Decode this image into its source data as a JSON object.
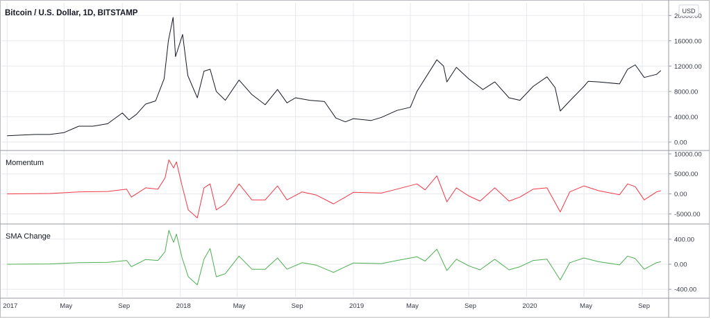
{
  "header": {
    "title": "Bitcoin / U.S. Dollar, 1D, BITSTAMP",
    "currency_badge": "USD"
  },
  "colors": {
    "price": "#131722",
    "momentum": "#f23645",
    "sma_change": "#4caf50",
    "grid": "#e6e8ec",
    "separator": "#9598a1"
  },
  "chart_data": [
    {
      "type": "line",
      "title": "Bitcoin / U.S. Dollar, 1D, BITSTAMP",
      "series": [
        {
          "values": [
            {
              "date": "2017-01-01",
              "value": 1000
            },
            {
              "date": "2017-02-01",
              "value": 1100
            },
            {
              "date": "2017-03-01",
              "value": 1200
            },
            {
              "date": "2017-04-01",
              "value": 1200
            },
            {
              "date": "2017-05-01",
              "value": 1500
            },
            {
              "date": "2017-06-01",
              "value": 2500
            },
            {
              "date": "2017-07-01",
              "value": 2500
            },
            {
              "date": "2017-08-01",
              "value": 2900
            },
            {
              "date": "2017-09-01",
              "value": 4600
            },
            {
              "date": "2017-09-15",
              "value": 3500
            },
            {
              "date": "2017-10-01",
              "value": 4400
            },
            {
              "date": "2017-10-20",
              "value": 6000
            },
            {
              "date": "2017-11-10",
              "value": 6500
            },
            {
              "date": "2017-11-28",
              "value": 10000
            },
            {
              "date": "2017-12-07",
              "value": 16000
            },
            {
              "date": "2017-12-17",
              "value": 19700
            },
            {
              "date": "2017-12-22",
              "value": 13500
            },
            {
              "date": "2018-01-06",
              "value": 17000
            },
            {
              "date": "2018-01-17",
              "value": 10500
            },
            {
              "date": "2018-02-06",
              "value": 7000
            },
            {
              "date": "2018-02-20",
              "value": 11200
            },
            {
              "date": "2018-03-05",
              "value": 11500
            },
            {
              "date": "2018-03-18",
              "value": 8000
            },
            {
              "date": "2018-04-06",
              "value": 6600
            },
            {
              "date": "2018-05-05",
              "value": 9800
            },
            {
              "date": "2018-06-01",
              "value": 7500
            },
            {
              "date": "2018-06-29",
              "value": 5900
            },
            {
              "date": "2018-07-25",
              "value": 8300
            },
            {
              "date": "2018-08-14",
              "value": 6200
            },
            {
              "date": "2018-09-01",
              "value": 7000
            },
            {
              "date": "2018-10-01",
              "value": 6600
            },
            {
              "date": "2018-11-01",
              "value": 6400
            },
            {
              "date": "2018-11-25",
              "value": 3800
            },
            {
              "date": "2018-12-15",
              "value": 3200
            },
            {
              "date": "2019-01-01",
              "value": 3700
            },
            {
              "date": "2019-02-07",
              "value": 3400
            },
            {
              "date": "2019-03-01",
              "value": 3900
            },
            {
              "date": "2019-04-03",
              "value": 5000
            },
            {
              "date": "2019-05-01",
              "value": 5500
            },
            {
              "date": "2019-05-15",
              "value": 8000
            },
            {
              "date": "2019-06-26",
              "value": 13000
            },
            {
              "date": "2019-07-10",
              "value": 12000
            },
            {
              "date": "2019-07-17",
              "value": 9500
            },
            {
              "date": "2019-08-06",
              "value": 11800
            },
            {
              "date": "2019-09-01",
              "value": 10000
            },
            {
              "date": "2019-10-01",
              "value": 8300
            },
            {
              "date": "2019-10-26",
              "value": 9500
            },
            {
              "date": "2019-11-25",
              "value": 7000
            },
            {
              "date": "2019-12-18",
              "value": 6600
            },
            {
              "date": "2020-01-15",
              "value": 8800
            },
            {
              "date": "2020-02-13",
              "value": 10300
            },
            {
              "date": "2020-03-01",
              "value": 8600
            },
            {
              "date": "2020-03-12",
              "value": 4900
            },
            {
              "date": "2020-04-01",
              "value": 6500
            },
            {
              "date": "2020-05-01",
              "value": 8800
            },
            {
              "date": "2020-05-10",
              "value": 9600
            },
            {
              "date": "2020-06-01",
              "value": 9500
            },
            {
              "date": "2020-07-15",
              "value": 9200
            },
            {
              "date": "2020-08-01",
              "value": 11500
            },
            {
              "date": "2020-08-17",
              "value": 12200
            },
            {
              "date": "2020-09-05",
              "value": 10200
            },
            {
              "date": "2020-10-01",
              "value": 10700
            },
            {
              "date": "2020-10-10",
              "value": 11300
            }
          ]
        }
      ],
      "y_ticks": [
        "0.00",
        "4000.00",
        "8000.00",
        "12000.00",
        "16000.00",
        "20000.00"
      ],
      "ylim": [
        -1000,
        22000
      ]
    },
    {
      "type": "line",
      "title": "Momentum",
      "series": [
        {
          "values": [
            {
              "date": "2017-01-01",
              "value": 0
            },
            {
              "date": "2017-04-01",
              "value": 100
            },
            {
              "date": "2017-06-01",
              "value": 500
            },
            {
              "date": "2017-08-01",
              "value": 600
            },
            {
              "date": "2017-09-10",
              "value": 1200
            },
            {
              "date": "2017-09-20",
              "value": -800
            },
            {
              "date": "2017-10-20",
              "value": 1500
            },
            {
              "date": "2017-11-15",
              "value": 1200
            },
            {
              "date": "2017-11-30",
              "value": 4000
            },
            {
              "date": "2017-12-08",
              "value": 8500
            },
            {
              "date": "2017-12-18",
              "value": 6500
            },
            {
              "date": "2017-12-24",
              "value": 8000
            },
            {
              "date": "2018-01-05",
              "value": 2000
            },
            {
              "date": "2018-01-18",
              "value": -4000
            },
            {
              "date": "2018-02-06",
              "value": -6000
            },
            {
              "date": "2018-02-20",
              "value": 1500
            },
            {
              "date": "2018-03-05",
              "value": 2500
            },
            {
              "date": "2018-03-18",
              "value": -4000
            },
            {
              "date": "2018-04-06",
              "value": -2500
            },
            {
              "date": "2018-05-05",
              "value": 2500
            },
            {
              "date": "2018-06-01",
              "value": -1500
            },
            {
              "date": "2018-06-29",
              "value": -1500
            },
            {
              "date": "2018-07-25",
              "value": 2000
            },
            {
              "date": "2018-08-14",
              "value": -1500
            },
            {
              "date": "2018-09-15",
              "value": 500
            },
            {
              "date": "2018-10-15",
              "value": -300
            },
            {
              "date": "2018-11-20",
              "value": -2500
            },
            {
              "date": "2018-12-15",
              "value": -800
            },
            {
              "date": "2019-01-01",
              "value": 400
            },
            {
              "date": "2019-03-01",
              "value": 200
            },
            {
              "date": "2019-04-03",
              "value": 1200
            },
            {
              "date": "2019-05-15",
              "value": 2500
            },
            {
              "date": "2019-06-01",
              "value": 1000
            },
            {
              "date": "2019-06-26",
              "value": 4500
            },
            {
              "date": "2019-07-17",
              "value": -2000
            },
            {
              "date": "2019-08-06",
              "value": 1500
            },
            {
              "date": "2019-09-01",
              "value": -500
            },
            {
              "date": "2019-09-25",
              "value": -1800
            },
            {
              "date": "2019-10-26",
              "value": 1500
            },
            {
              "date": "2019-11-25",
              "value": -1800
            },
            {
              "date": "2019-12-18",
              "value": -800
            },
            {
              "date": "2020-01-15",
              "value": 1200
            },
            {
              "date": "2020-02-13",
              "value": 1500
            },
            {
              "date": "2020-03-12",
              "value": -4500
            },
            {
              "date": "2020-04-01",
              "value": 500
            },
            {
              "date": "2020-05-01",
              "value": 2000
            },
            {
              "date": "2020-06-01",
              "value": 800
            },
            {
              "date": "2020-07-15",
              "value": -200
            },
            {
              "date": "2020-08-01",
              "value": 2500
            },
            {
              "date": "2020-08-17",
              "value": 1800
            },
            {
              "date": "2020-09-05",
              "value": -1500
            },
            {
              "date": "2020-10-01",
              "value": 500
            },
            {
              "date": "2020-10-10",
              "value": 800
            }
          ]
        }
      ],
      "y_ticks": [
        "10000.00",
        "5000.00",
        "0.00",
        "-5000.00"
      ],
      "ylim": [
        -7000,
        10500
      ]
    },
    {
      "type": "line",
      "title": "SMA Change",
      "series": [
        {
          "values": [
            {
              "date": "2017-01-01",
              "value": 0
            },
            {
              "date": "2017-04-01",
              "value": 5
            },
            {
              "date": "2017-06-01",
              "value": 25
            },
            {
              "date": "2017-08-01",
              "value": 30
            },
            {
              "date": "2017-09-10",
              "value": 60
            },
            {
              "date": "2017-09-20",
              "value": -40
            },
            {
              "date": "2017-10-20",
              "value": 75
            },
            {
              "date": "2017-11-15",
              "value": 60
            },
            {
              "date": "2017-11-30",
              "value": 200
            },
            {
              "date": "2017-12-08",
              "value": 540
            },
            {
              "date": "2017-12-18",
              "value": 350
            },
            {
              "date": "2017-12-24",
              "value": 480
            },
            {
              "date": "2018-01-05",
              "value": 100
            },
            {
              "date": "2018-01-18",
              "value": -200
            },
            {
              "date": "2018-02-06",
              "value": -330
            },
            {
              "date": "2018-02-20",
              "value": 80
            },
            {
              "date": "2018-03-05",
              "value": 250
            },
            {
              "date": "2018-03-18",
              "value": -200
            },
            {
              "date": "2018-04-06",
              "value": -150
            },
            {
              "date": "2018-05-05",
              "value": 130
            },
            {
              "date": "2018-06-01",
              "value": -80
            },
            {
              "date": "2018-06-29",
              "value": -80
            },
            {
              "date": "2018-07-25",
              "value": 100
            },
            {
              "date": "2018-08-14",
              "value": -80
            },
            {
              "date": "2018-09-15",
              "value": 25
            },
            {
              "date": "2018-10-15",
              "value": -15
            },
            {
              "date": "2018-11-20",
              "value": -130
            },
            {
              "date": "2018-12-15",
              "value": -40
            },
            {
              "date": "2019-01-01",
              "value": 20
            },
            {
              "date": "2019-03-01",
              "value": 10
            },
            {
              "date": "2019-04-03",
              "value": 60
            },
            {
              "date": "2019-05-15",
              "value": 120
            },
            {
              "date": "2019-06-01",
              "value": 50
            },
            {
              "date": "2019-06-26",
              "value": 240
            },
            {
              "date": "2019-07-17",
              "value": -100
            },
            {
              "date": "2019-08-06",
              "value": 80
            },
            {
              "date": "2019-09-01",
              "value": -25
            },
            {
              "date": "2019-09-25",
              "value": -90
            },
            {
              "date": "2019-10-26",
              "value": 80
            },
            {
              "date": "2019-11-25",
              "value": -90
            },
            {
              "date": "2019-12-18",
              "value": -40
            },
            {
              "date": "2020-01-15",
              "value": 60
            },
            {
              "date": "2020-02-13",
              "value": 80
            },
            {
              "date": "2020-03-12",
              "value": -250
            },
            {
              "date": "2020-04-01",
              "value": 25
            },
            {
              "date": "2020-05-01",
              "value": 100
            },
            {
              "date": "2020-06-01",
              "value": 40
            },
            {
              "date": "2020-07-15",
              "value": -10
            },
            {
              "date": "2020-08-01",
              "value": 130
            },
            {
              "date": "2020-08-17",
              "value": 90
            },
            {
              "date": "2020-09-05",
              "value": -80
            },
            {
              "date": "2020-10-01",
              "value": 25
            },
            {
              "date": "2020-10-10",
              "value": 40
            }
          ]
        }
      ],
      "y_ticks": [
        "400.00",
        "0.00",
        "-400.00"
      ],
      "ylim": [
        -520,
        620
      ]
    }
  ],
  "x_axis": {
    "labels": [
      {
        "date": "2017-01-01",
        "label": "2017"
      },
      {
        "date": "2017-05-01",
        "label": "May"
      },
      {
        "date": "2017-09-01",
        "label": "Sep"
      },
      {
        "date": "2018-01-01",
        "label": "2018"
      },
      {
        "date": "2018-05-01",
        "label": "May"
      },
      {
        "date": "2018-09-01",
        "label": "Sep"
      },
      {
        "date": "2019-01-01",
        "label": "2019"
      },
      {
        "date": "2019-05-01",
        "label": "May"
      },
      {
        "date": "2019-09-01",
        "label": "Sep"
      },
      {
        "date": "2020-01-01",
        "label": "2020"
      },
      {
        "date": "2020-05-01",
        "label": "May"
      },
      {
        "date": "2020-09-01",
        "label": "Sep"
      }
    ],
    "xlim": [
      "2016-12-20",
      "2020-10-25"
    ]
  }
}
